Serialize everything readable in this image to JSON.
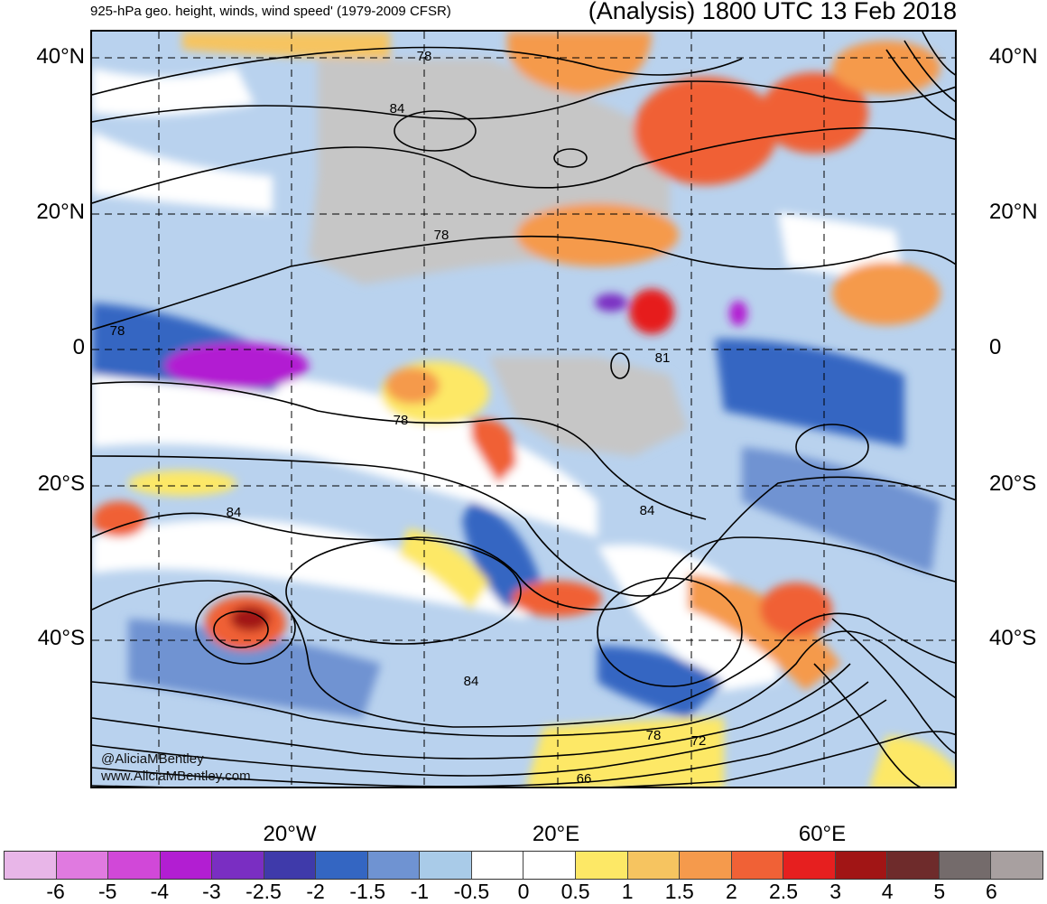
{
  "header": {
    "left_title": "925-hPa geo. height, winds, wind speed' (1979-2009 CFSR)",
    "right_title": "(Analysis) 1800 UTC 13 Feb 2018"
  },
  "lat_labels": [
    "40°N",
    "20°N",
    "0",
    "20°S",
    "40°S"
  ],
  "lon_labels": [
    "20°W",
    "20°E",
    "60°E"
  ],
  "contour_labels": [
    "78",
    "84",
    "78",
    "78",
    "78",
    "84",
    "84",
    "84",
    "78",
    "72",
    "66",
    "81"
  ],
  "credits": [
    "@AliciaMBentley",
    "www.AliciaMBentley.com"
  ],
  "colorbar": {
    "colors": [
      "#e8b6e8",
      "#e07ae0",
      "#d148d8",
      "#b21ed2",
      "#7a2ec2",
      "#3f3aaa",
      "#3466c2",
      "#6f93d2",
      "#a9cbe8",
      "#ffffff",
      "#ffffff",
      "#fde866",
      "#f6c460",
      "#f59a4c",
      "#f06136",
      "#e61f1f",
      "#a11515",
      "#6e2b2b",
      "#746b6b",
      "#a8a0a0"
    ],
    "ticks": [
      "-6",
      "-5",
      "-4",
      "-3",
      "-2.5",
      "-2",
      "-1.5",
      "-1",
      "-0.5",
      "0",
      "0.5",
      "1",
      "1.5",
      "2",
      "2.5",
      "3",
      "4",
      "5",
      "6"
    ]
  }
}
